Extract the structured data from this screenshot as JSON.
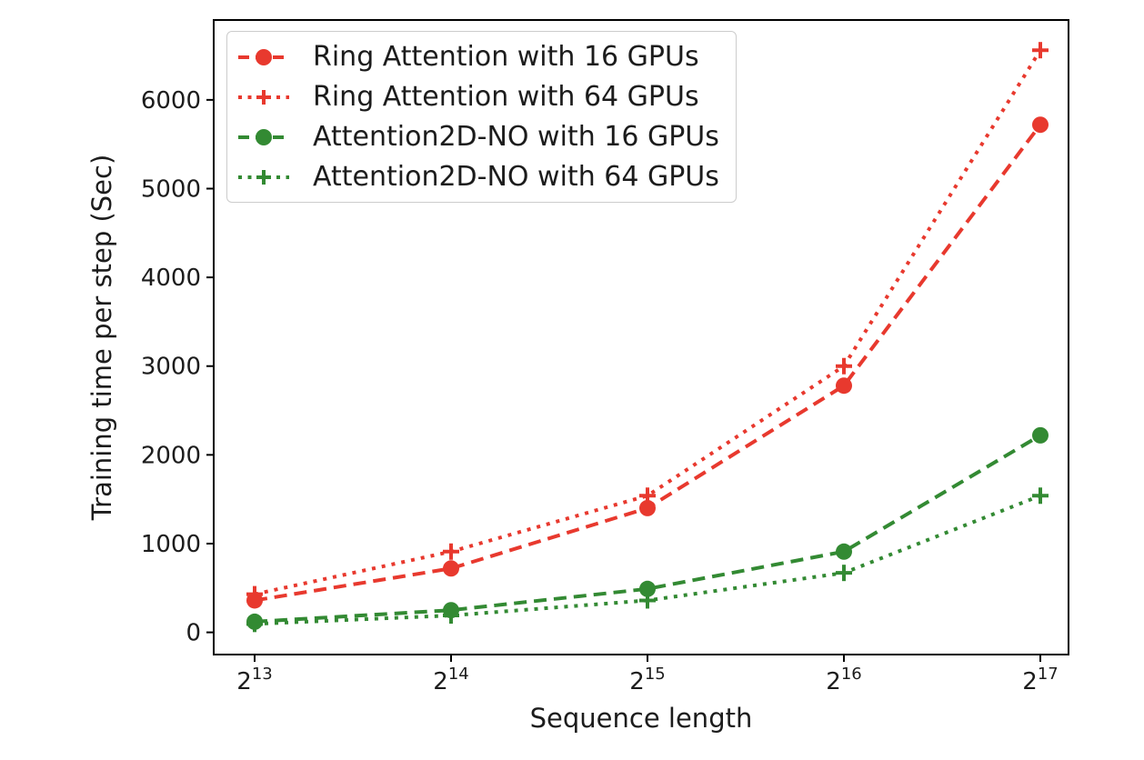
{
  "window": {
    "background": "#ffffff"
  },
  "chart_data": {
    "type": "line",
    "title": "",
    "xlabel": "Sequence length",
    "ylabel": "Training time per step (Sec)",
    "categories": [
      "2^13",
      "2^14",
      "2^15",
      "2^16",
      "2^17"
    ],
    "x_tick_format": "power-of-two",
    "yticks": [
      0,
      1000,
      2000,
      3000,
      4000,
      5000,
      6000
    ],
    "ylim": [
      -250,
      6900
    ],
    "grid": false,
    "legend_position": "upper-left",
    "axis_color": "#000000",
    "text_color": "#1c1c1c",
    "series": [
      {
        "name": "Ring Attention with 16 GPUs",
        "color": "#e8392e",
        "linestyle": "dashed",
        "marker": "circle",
        "values": [
          360,
          720,
          1400,
          2780,
          5720
        ]
      },
      {
        "name": "Ring Attention with 64 GPUs",
        "color": "#e8392e",
        "linestyle": "dotted",
        "marker": "plus",
        "values": [
          430,
          910,
          1540,
          3000,
          6560
        ]
      },
      {
        "name": "Attention2D-NO with 16 GPUs",
        "color": "#338a33",
        "linestyle": "dashed",
        "marker": "circle",
        "values": [
          120,
          250,
          490,
          910,
          2220
        ]
      },
      {
        "name": "Attention2D-NO with 64 GPUs",
        "color": "#338a33",
        "linestyle": "dotted",
        "marker": "plus",
        "values": [
          95,
          190,
          360,
          670,
          1540
        ]
      }
    ]
  }
}
